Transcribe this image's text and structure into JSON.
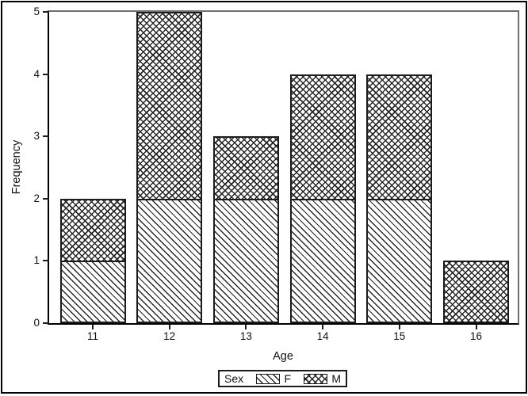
{
  "chart_data": {
    "type": "bar",
    "stacked": true,
    "title": "",
    "xlabel": "Age",
    "ylabel": "Frequency",
    "categories": [
      "11",
      "12",
      "13",
      "14",
      "15",
      "16"
    ],
    "series": [
      {
        "name": "F",
        "pattern": "diagonal",
        "values": [
          1,
          2,
          2,
          2,
          2,
          0
        ]
      },
      {
        "name": "M",
        "pattern": "crosshatch",
        "values": [
          1,
          3,
          1,
          2,
          2,
          1
        ]
      }
    ],
    "totals": [
      2,
      5,
      3,
      4,
      4,
      1
    ],
    "ylim": [
      0,
      5
    ],
    "yticks": [
      "0",
      "1",
      "2",
      "3",
      "4",
      "5"
    ],
    "grid": false,
    "legend_title": "Sex",
    "legend_position": "bottom"
  },
  "colors": {
    "background": "#ffffff",
    "outer_border": "#000000",
    "axis": "#000000",
    "frame": "#6e6e6e",
    "bar_outline": "#1c1c1c",
    "pattern_lines": "#262626",
    "text": "#111111"
  }
}
